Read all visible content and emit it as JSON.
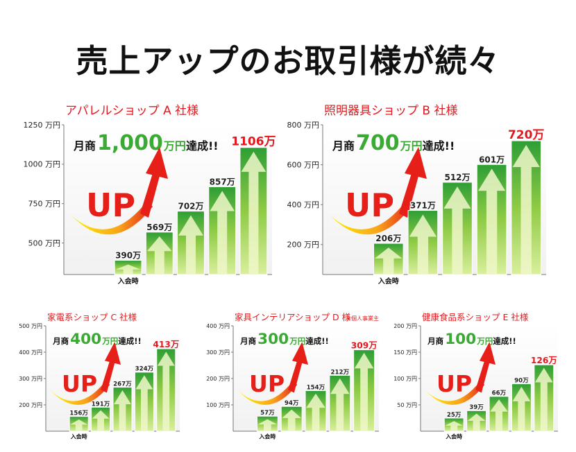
{
  "page": {
    "title": "売上アップのお取引様が続々"
  },
  "colors": {
    "accent": "#e4171c",
    "green": "#3aaa35",
    "axis": "#777777"
  },
  "chart_data": [
    {
      "type": "bar",
      "title": "アパレルショップ A 社様",
      "note": "",
      "headline": {
        "prefix": "月商",
        "amount": "1,000",
        "suffix": "万円達成!!"
      },
      "up_text": "UP",
      "categories": [
        "入会時",
        "",
        "",
        "",
        ""
      ],
      "values": [
        390,
        569,
        702,
        857,
        1106
      ],
      "value_labels": [
        "390万",
        "569万",
        "702万",
        "857万",
        "1106万"
      ],
      "y_ticks": [
        500,
        750,
        1000,
        1250
      ],
      "y_tick_labels": [
        "500 万円",
        "750 万円",
        "1000 万円",
        "1250 万円"
      ],
      "ylim": [
        300,
        1250
      ]
    },
    {
      "type": "bar",
      "title": "照明器具ショップ B 社様",
      "note": "",
      "headline": {
        "prefix": "月商",
        "amount": "700",
        "suffix": "万円達成!!"
      },
      "up_text": "UP",
      "categories": [
        "入会時",
        "",
        "",
        "",
        ""
      ],
      "values": [
        206,
        371,
        512,
        601,
        720
      ],
      "value_labels": [
        "206万",
        "371万",
        "512万",
        "601万",
        "720万"
      ],
      "y_ticks": [
        200,
        400,
        600,
        800
      ],
      "y_tick_labels": [
        "200 万円",
        "400 万円",
        "600 万円",
        "800 万円"
      ],
      "ylim": [
        50,
        800
      ]
    },
    {
      "type": "bar",
      "title": "家電系ショップ C 社様",
      "note": "",
      "headline": {
        "prefix": "月商",
        "amount": "400",
        "suffix": "万円達成!!"
      },
      "up_text": "UP",
      "categories": [
        "入会時",
        "",
        "",
        "",
        ""
      ],
      "values": [
        156,
        191,
        267,
        324,
        413
      ],
      "value_labels": [
        "156万",
        "191万",
        "267万",
        "324万",
        "413万"
      ],
      "y_ticks": [
        200,
        300,
        400,
        500
      ],
      "y_tick_labels": [
        "200 万円",
        "300 万円",
        "400 万円",
        "500 万円"
      ],
      "ylim": [
        100,
        500
      ]
    },
    {
      "type": "bar",
      "title": "家具インテリアショップ D 様",
      "note": "※個人事業主",
      "headline": {
        "prefix": "月商",
        "amount": "300",
        "suffix": "万円達成!!"
      },
      "up_text": "UP",
      "categories": [
        "入会時",
        "",
        "",
        "",
        ""
      ],
      "values": [
        57,
        94,
        154,
        212,
        309
      ],
      "value_labels": [
        "57万",
        "94万",
        "154万",
        "212万",
        "309万"
      ],
      "y_ticks": [
        100,
        200,
        300,
        400
      ],
      "y_tick_labels": [
        "100 万円",
        "200 万円",
        "300 万円",
        "400 万円"
      ],
      "ylim": [
        0,
        400
      ]
    },
    {
      "type": "bar",
      "title": "健康食品系ショップ E 社様",
      "note": "",
      "headline": {
        "prefix": "月商",
        "amount": "100",
        "suffix": "万円達成!!"
      },
      "up_text": "UP",
      "categories": [
        "入会時",
        "",
        "",
        "",
        ""
      ],
      "values": [
        25,
        39,
        66,
        90,
        126
      ],
      "value_labels": [
        "25万",
        "39万",
        "66万",
        "90万",
        "126万"
      ],
      "y_ticks": [
        50,
        100,
        150,
        200
      ],
      "y_tick_labels": [
        "50 万円",
        "100 万円",
        "150 万円",
        "200 万円"
      ],
      "ylim": [
        0,
        200
      ]
    }
  ]
}
